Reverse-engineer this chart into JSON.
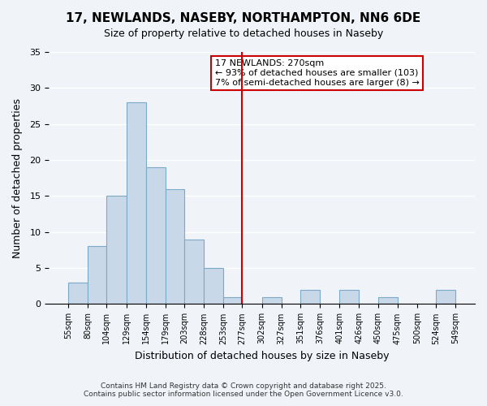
{
  "title": "17, NEWLANDS, NASEBY, NORTHAMPTON, NN6 6DE",
  "subtitle": "Size of property relative to detached houses in Naseby",
  "xlabel": "Distribution of detached houses by size in Naseby",
  "ylabel": "Number of detached properties",
  "bar_color": "#c8d8e8",
  "bar_edge_color": "#7aaac8",
  "bins": [
    55,
    80,
    104,
    129,
    154,
    179,
    203,
    228,
    253,
    277,
    302,
    327,
    351,
    376,
    401,
    426,
    450,
    475,
    500,
    524,
    549
  ],
  "counts": [
    3,
    8,
    15,
    28,
    19,
    16,
    9,
    5,
    1,
    0,
    1,
    0,
    2,
    0,
    2,
    0,
    1,
    0,
    0,
    2
  ],
  "tick_labels": [
    "55sqm",
    "80sqm",
    "104sqm",
    "129sqm",
    "154sqm",
    "179sqm",
    "203sqm",
    "228sqm",
    "253sqm",
    "277sqm",
    "302sqm",
    "327sqm",
    "351sqm",
    "376sqm",
    "401sqm",
    "426sqm",
    "450sqm",
    "475sqm",
    "500sqm",
    "524sqm",
    "549sqm"
  ],
  "vline_x": 277,
  "vline_color": "#cc0000",
  "annotation_title": "17 NEWLANDS: 270sqm",
  "annotation_line1": "← 93% of detached houses are smaller (103)",
  "annotation_line2": "7% of semi-detached houses are larger (8) →",
  "annotation_box_color": "#ffffff",
  "annotation_box_edge": "#cc0000",
  "ylim": [
    0,
    35
  ],
  "yticks": [
    0,
    5,
    10,
    15,
    20,
    25,
    30,
    35
  ],
  "background_color": "#f0f4f8",
  "grid_color": "#ffffff",
  "footer_line1": "Contains HM Land Registry data © Crown copyright and database right 2025.",
  "footer_line2": "Contains public sector information licensed under the Open Government Licence v3.0."
}
